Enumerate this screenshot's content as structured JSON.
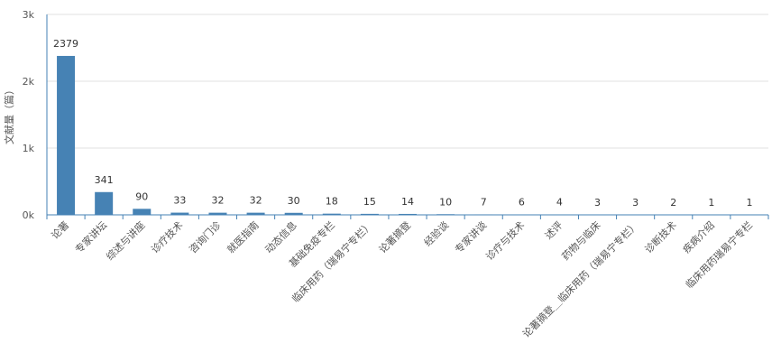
{
  "chart_data": {
    "type": "bar",
    "y_label": "文献量（篇）",
    "categories": [
      "论著",
      "专家讲坛",
      "综述与讲座",
      "诊疗技术",
      "咨询门诊",
      "就医指南",
      "动态信息",
      "基础免疫专栏",
      "临床用药（瑞易宁专栏）",
      "论著摘登",
      "经验谈",
      "专家讲谈",
      "诊疗与技术",
      "述评",
      "药物与临床",
      "论著摘登＿临床用药（瑞易宁专栏）",
      "诊断技术",
      "疾病介绍",
      "临床用药瑞易宁专栏"
    ],
    "values": [
      2379,
      341,
      90,
      33,
      32,
      32,
      30,
      18,
      15,
      14,
      10,
      7,
      6,
      4,
      3,
      3,
      2,
      1,
      1
    ],
    "color": "#4682b4",
    "ylim": [
      0,
      3000
    ],
    "yticks": [
      {
        "value": 0,
        "label": "0k"
      },
      {
        "value": 1000,
        "label": "1k"
      },
      {
        "value": 2000,
        "label": "2k"
      },
      {
        "value": 3000,
        "label": "3k"
      }
    ],
    "grid": true
  }
}
